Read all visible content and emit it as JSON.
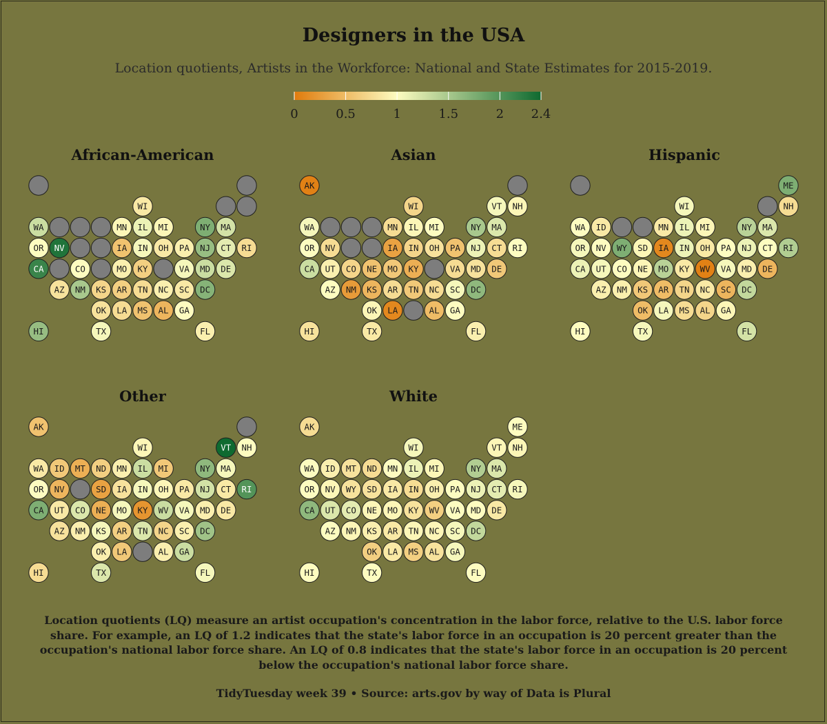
{
  "title": "Designers in the USA",
  "subtitle": "Location quotients, Artists in the Workforce: National and State Estimates for 2015-2019.",
  "legend": {
    "ticks": [
      0,
      0.5,
      1,
      1.5,
      2,
      2.4
    ],
    "tick_labels": [
      "0",
      "0.5",
      "1",
      "1.5",
      "2",
      "2.4"
    ],
    "min": 0,
    "max": 2.4,
    "colors": [
      "#e07b0c",
      "#fdfcc0",
      "#0f6a30"
    ],
    "missing_color": "#7d7d7d"
  },
  "caption": "Location quotients (LQ) measure an artist occupation's concentration in the labor force, relative to the U.S. labor force share. For example, an LQ of 1.2 indicates that the state's labor force in an occupation is 20 percent greater than the occupation's national labor force share. An LQ of 0.8 indicates that the state's labor force in an occupation is 20 percent below the occupation's national labor force share.",
  "credit": "TidyTuesday week 39 • Source: arts.gov by way of Data is Plural",
  "chart_data": {
    "type": "tile-map",
    "measure": "Location quotient (LQ)",
    "grid": [
      [
        "AK",
        0,
        0
      ],
      [
        "ME",
        10,
        0
      ],
      [
        "WI",
        5,
        1
      ],
      [
        "VT",
        9,
        1
      ],
      [
        "NH",
        10,
        1
      ],
      [
        "WA",
        0,
        2
      ],
      [
        "ID",
        1,
        2
      ],
      [
        "MT",
        2,
        2
      ],
      [
        "ND",
        3,
        2
      ],
      [
        "MN",
        4,
        2
      ],
      [
        "IL",
        5,
        2
      ],
      [
        "MI",
        6,
        2
      ],
      [
        "NY",
        8,
        2
      ],
      [
        "MA",
        9,
        2
      ],
      [
        "OR",
        0,
        3
      ],
      [
        "NV",
        1,
        3
      ],
      [
        "WY",
        2,
        3
      ],
      [
        "SD",
        3,
        3
      ],
      [
        "IA",
        4,
        3
      ],
      [
        "IN",
        5,
        3
      ],
      [
        "OH",
        6,
        3
      ],
      [
        "PA",
        7,
        3
      ],
      [
        "NJ",
        8,
        3
      ],
      [
        "CT",
        9,
        3
      ],
      [
        "RI",
        10,
        3
      ],
      [
        "CA",
        0,
        4
      ],
      [
        "UT",
        1,
        4
      ],
      [
        "CO",
        2,
        4
      ],
      [
        "NE",
        3,
        4
      ],
      [
        "MO",
        4,
        4
      ],
      [
        "KY",
        5,
        4
      ],
      [
        "WV",
        6,
        4
      ],
      [
        "VA",
        7,
        4
      ],
      [
        "MD",
        8,
        4
      ],
      [
        "DE",
        9,
        4
      ],
      [
        "AZ",
        1,
        5
      ],
      [
        "NM",
        2,
        5
      ],
      [
        "KS",
        3,
        5
      ],
      [
        "AR",
        4,
        5
      ],
      [
        "TN",
        5,
        5
      ],
      [
        "NC",
        6,
        5
      ],
      [
        "SC",
        7,
        5
      ],
      [
        "DC",
        8,
        5
      ],
      [
        "OK",
        3,
        6
      ],
      [
        "LA",
        4,
        6
      ],
      [
        "MS",
        5,
        6
      ],
      [
        "AL",
        6,
        6
      ],
      [
        "GA",
        7,
        6
      ],
      [
        "HI",
        0,
        7
      ],
      [
        "TX",
        3,
        7
      ],
      [
        "FL",
        8,
        7
      ]
    ],
    "panels": [
      {
        "name": "African-American",
        "values": {
          "AK": null,
          "ME": null,
          "WI": 0.85,
          "VT": null,
          "NH": null,
          "WA": 1.3,
          "ID": null,
          "MT": null,
          "ND": null,
          "MN": 0.95,
          "IL": 1.1,
          "MI": 0.95,
          "NY": 1.75,
          "MA": 1.25,
          "OR": 1.0,
          "NV": 2.3,
          "WY": null,
          "SD": null,
          "IA": 0.55,
          "IN": 1.05,
          "OH": 0.85,
          "PA": 0.9,
          "NJ": 1.6,
          "CT": 1.15,
          "RI": 0.75,
          "CA": 2.15,
          "UT": null,
          "CO": 1.0,
          "NE": null,
          "MO": 0.9,
          "KY": 0.65,
          "WV": null,
          "VA": 1.05,
          "MD": 1.3,
          "DE": 1.2,
          "AZ": 0.8,
          "NM": 1.5,
          "KS": 0.7,
          "AR": 0.65,
          "TN": 0.75,
          "NC": 0.9,
          "SC": 0.85,
          "DC": 1.7,
          "OK": 0.8,
          "LA": 0.75,
          "MS": 0.55,
          "AL": 0.45,
          "GA": 1.0,
          "HI": 1.6,
          "TX": 1.05,
          "FL": 0.9
        }
      },
      {
        "name": "Asian",
        "values": {
          "AK": 0.05,
          "ME": null,
          "WI": 0.7,
          "VT": 1.05,
          "NH": 0.95,
          "WA": 1.05,
          "ID": null,
          "MT": null,
          "ND": null,
          "MN": 0.75,
          "IL": 0.95,
          "MI": 1.0,
          "NY": 1.5,
          "MA": 1.2,
          "OR": 1.0,
          "NV": 0.75,
          "WY": null,
          "SD": null,
          "IA": 0.3,
          "IN": 0.7,
          "OH": 0.8,
          "PA": 0.55,
          "NJ": 1.1,
          "CT": 0.75,
          "RI": 1.0,
          "CA": 1.3,
          "UT": 0.9,
          "CO": 0.7,
          "NE": 0.55,
          "MO": 0.6,
          "KY": 0.4,
          "WV": null,
          "VA": 0.75,
          "MD": 0.8,
          "DE": 0.6,
          "AZ": 1.0,
          "NM": 0.25,
          "KS": 0.45,
          "AR": 0.75,
          "TN": 0.6,
          "NC": 0.75,
          "SC": 1.05,
          "DC": 1.65,
          "OK": 0.95,
          "LA": 0.1,
          "MS": null,
          "AL": 0.5,
          "GA": 1.0,
          "HI": 0.8,
          "TX": 0.85,
          "FL": 0.9
        }
      },
      {
        "name": "Hispanic",
        "values": {
          "AK": null,
          "ME": 1.75,
          "WI": 1.05,
          "VT": null,
          "NH": 0.75,
          "WA": 1.0,
          "ID": 0.85,
          "MT": null,
          "ND": null,
          "MN": 0.85,
          "IL": 1.1,
          "MI": 0.95,
          "NY": 1.4,
          "MA": 1.2,
          "OR": 1.05,
          "NV": 1.0,
          "WY": 1.75,
          "SD": 0.95,
          "IA": 0.1,
          "IN": 1.1,
          "OH": 0.85,
          "PA": 1.0,
          "NJ": 1.1,
          "CT": 1.0,
          "RI": 1.45,
          "CA": 1.1,
          "UT": 1.05,
          "CO": 1.0,
          "NE": 0.95,
          "MO": 1.4,
          "KY": 0.85,
          "WV": 0.05,
          "VA": 1.05,
          "MD": 0.9,
          "DE": 0.45,
          "AZ": 0.9,
          "NM": 0.9,
          "KS": 0.6,
          "AR": 0.5,
          "TN": 0.7,
          "NC": 0.85,
          "SC": 0.45,
          "DC": 1.35,
          "OK": 0.5,
          "LA": 1.05,
          "MS": 0.75,
          "AL": 0.7,
          "GA": 0.95,
          "HI": 1.0,
          "TX": 1.05,
          "FL": 1.25
        }
      },
      {
        "name": "Other",
        "values": {
          "AK": 0.55,
          "ME": null,
          "WI": 0.95,
          "VT": 2.4,
          "NH": 1.0,
          "WA": 0.85,
          "ID": 0.6,
          "MT": 0.4,
          "ND": 0.65,
          "MN": 0.9,
          "IL": 1.3,
          "MI": 0.6,
          "NY": 1.65,
          "MA": 1.05,
          "OR": 1.0,
          "NV": 0.45,
          "WY": null,
          "SD": 0.3,
          "IA": 0.8,
          "IN": 1.05,
          "OH": 0.95,
          "PA": 0.85,
          "NJ": 1.25,
          "CT": 0.85,
          "RI": 2.0,
          "CA": 1.75,
          "UT": 0.85,
          "CO": 1.2,
          "NE": 0.4,
          "MO": 1.05,
          "KY": 0.2,
          "WV": 1.3,
          "VA": 1.05,
          "MD": 0.9,
          "DE": 0.85,
          "AZ": 0.8,
          "NM": 0.9,
          "KS": 1.05,
          "AR": 0.65,
          "TN": 1.2,
          "NC": 0.7,
          "SC": 0.9,
          "DC": 1.55,
          "OK": 0.9,
          "LA": 0.6,
          "MS": null,
          "AL": 0.9,
          "GA": 1.3,
          "HI": 0.75,
          "TX": 1.2,
          "FL": 1.05
        }
      },
      {
        "name": "White",
        "values": {
          "AK": 0.75,
          "ME": 1.0,
          "WI": 1.05,
          "VT": 0.95,
          "NH": 0.95,
          "WA": 1.0,
          "ID": 0.9,
          "MT": 0.8,
          "ND": 0.75,
          "MN": 1.0,
          "IL": 1.1,
          "MI": 0.95,
          "NY": 1.45,
          "MA": 1.2,
          "OR": 1.0,
          "NV": 0.95,
          "WY": 0.8,
          "SD": 0.8,
          "IA": 0.85,
          "IN": 0.75,
          "OH": 0.9,
          "PA": 1.0,
          "NJ": 1.1,
          "CT": 1.15,
          "RI": 1.05,
          "CA": 1.65,
          "UT": 1.2,
          "CO": 1.15,
          "NE": 0.95,
          "MO": 0.95,
          "KY": 0.8,
          "WV": 0.65,
          "VA": 1.0,
          "MD": 1.0,
          "DE": 0.85,
          "AZ": 1.0,
          "NM": 0.95,
          "KS": 0.9,
          "AR": 0.85,
          "TN": 0.95,
          "NC": 0.95,
          "SC": 1.05,
          "DC": 1.35,
          "OK": 0.65,
          "LA": 0.85,
          "MS": 0.65,
          "AL": 0.8,
          "GA": 1.05,
          "HI": 1.0,
          "TX": 1.0,
          "FL": 1.0
        }
      }
    ]
  }
}
